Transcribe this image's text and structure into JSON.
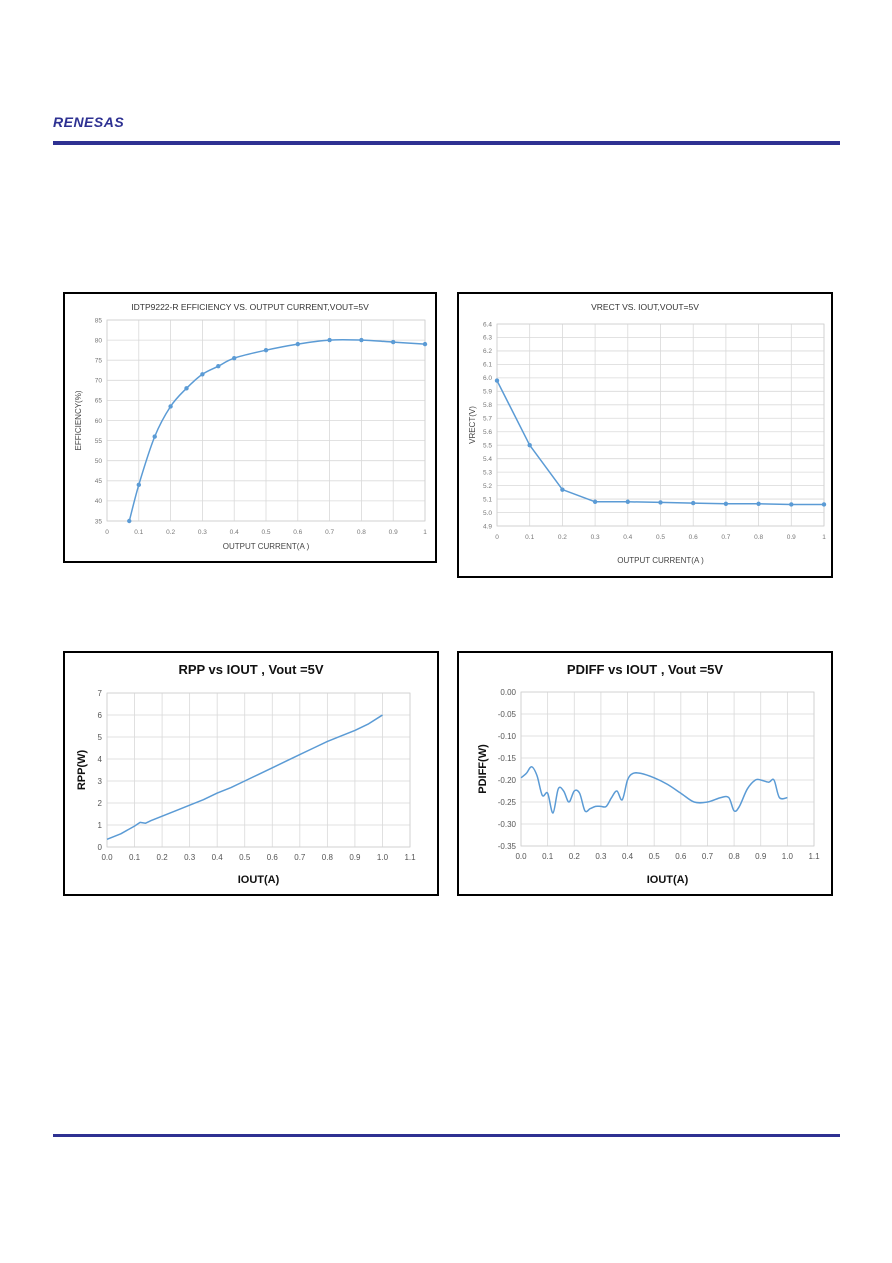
{
  "header": {
    "brand": "RENESAS",
    "colors": {
      "rule": "#2e3192",
      "line": "#5b9bd5"
    }
  },
  "chart_data": [
    {
      "type": "line",
      "title": "IDTP9222-R EFFICIENCY VS. OUTPUT CURRENT,VOUT=5V",
      "xlabel": "OUTPUT CURRENT(A )",
      "ylabel": "EFFICIENCY(%)",
      "xlim": [
        0,
        1
      ],
      "ylim": [
        35,
        85
      ],
      "xticks": [
        "0",
        "0.1",
        "0.2",
        "0.3",
        "0.4",
        "0.5",
        "0.6",
        "0.7",
        "0.8",
        "0.9",
        "1"
      ],
      "yticks": [
        "35",
        "40",
        "45",
        "50",
        "55",
        "60",
        "65",
        "70",
        "75",
        "80",
        "85"
      ],
      "grid": true,
      "markers": true,
      "smooth": true,
      "series": [
        {
          "x": [
            0.07,
            0.1,
            0.15,
            0.2,
            0.25,
            0.3,
            0.35,
            0.4,
            0.5,
            0.6,
            0.7,
            0.8,
            0.9,
            1.0
          ],
          "values": [
            35,
            44,
            56,
            63.5,
            68,
            71.5,
            73.5,
            75.5,
            77.5,
            79,
            80,
            80,
            79.5,
            79
          ]
        }
      ]
    },
    {
      "type": "line",
      "title": "VRECT VS. IOUT,VOUT=5V",
      "xlabel": "OUTPUT CURRENT(A )",
      "ylabel": "VRECT(V)",
      "xlim": [
        0,
        1
      ],
      "ylim": [
        4.9,
        6.4
      ],
      "xticks": [
        "0",
        "0.1",
        "0.2",
        "0.3",
        "0.4",
        "0.5",
        "0.6",
        "0.7",
        "0.8",
        "0.9",
        "1"
      ],
      "yticks": [
        "4.9",
        "5.0",
        "5.1",
        "5.2",
        "5.3",
        "5.4",
        "5.5",
        "5.6",
        "5.7",
        "5.8",
        "5.9",
        "6.0",
        "6.1",
        "6.2",
        "6.3",
        "6.4"
      ],
      "grid": true,
      "markers": true,
      "smooth": false,
      "series": [
        {
          "x": [
            0,
            0.1,
            0.2,
            0.3,
            0.4,
            0.5,
            0.6,
            0.7,
            0.8,
            0.9,
            1.0
          ],
          "values": [
            5.98,
            5.5,
            5.17,
            5.08,
            5.08,
            5.075,
            5.07,
            5.065,
            5.065,
            5.06,
            5.06
          ]
        }
      ]
    },
    {
      "type": "line",
      "title": "RPP vs IOUT , Vout =5V",
      "xlabel": "IOUT(A)",
      "ylabel": "RPP(W)",
      "xlim": [
        0,
        1.1
      ],
      "ylim": [
        0,
        7
      ],
      "xticks": [
        "0.0",
        "0.1",
        "0.2",
        "0.3",
        "0.4",
        "0.5",
        "0.6",
        "0.7",
        "0.8",
        "0.9",
        "1.0",
        "1.1"
      ],
      "yticks": [
        "0",
        "1",
        "2",
        "3",
        "4",
        "5",
        "6",
        "7"
      ],
      "grid": true,
      "markers": false,
      "smooth": false,
      "series": [
        {
          "x": [
            0,
            0.05,
            0.1,
            0.12,
            0.14,
            0.16,
            0.2,
            0.25,
            0.3,
            0.35,
            0.4,
            0.45,
            0.5,
            0.55,
            0.6,
            0.65,
            0.7,
            0.75,
            0.8,
            0.85,
            0.9,
            0.95,
            1.0
          ],
          "values": [
            0.35,
            0.6,
            0.95,
            1.12,
            1.08,
            1.2,
            1.4,
            1.65,
            1.9,
            2.15,
            2.45,
            2.7,
            3.0,
            3.3,
            3.6,
            3.9,
            4.2,
            4.5,
            4.8,
            5.05,
            5.3,
            5.6,
            6.0
          ]
        }
      ]
    },
    {
      "type": "line",
      "title": "PDIFF vs IOUT , Vout =5V",
      "xlabel": "IOUT(A)",
      "ylabel": "PDIFF(W)",
      "xlim": [
        0,
        1.1
      ],
      "ylim": [
        -0.35,
        0
      ],
      "xticks": [
        "0.0",
        "0.1",
        "0.2",
        "0.3",
        "0.4",
        "0.5",
        "0.6",
        "0.7",
        "0.8",
        "0.9",
        "1.0",
        "1.1"
      ],
      "yticks": [
        "-0.35",
        "-0.30",
        "-0.25",
        "-0.20",
        "-0.15",
        "-0.10",
        "-0.05",
        "0.00"
      ],
      "grid": true,
      "markers": false,
      "smooth": true,
      "series": [
        {
          "x": [
            0,
            0.02,
            0.04,
            0.06,
            0.08,
            0.1,
            0.12,
            0.14,
            0.16,
            0.18,
            0.2,
            0.22,
            0.24,
            0.26,
            0.28,
            0.3,
            0.32,
            0.34,
            0.36,
            0.38,
            0.4,
            0.42,
            0.45,
            0.5,
            0.55,
            0.6,
            0.65,
            0.7,
            0.75,
            0.78,
            0.8,
            0.82,
            0.85,
            0.88,
            0.9,
            0.93,
            0.95,
            0.97,
            1.0
          ],
          "values": [
            -0.195,
            -0.185,
            -0.17,
            -0.19,
            -0.235,
            -0.23,
            -0.275,
            -0.22,
            -0.225,
            -0.25,
            -0.225,
            -0.23,
            -0.27,
            -0.265,
            -0.26,
            -0.26,
            -0.26,
            -0.24,
            -0.225,
            -0.245,
            -0.2,
            -0.185,
            -0.185,
            -0.195,
            -0.21,
            -0.23,
            -0.25,
            -0.25,
            -0.24,
            -0.24,
            -0.27,
            -0.26,
            -0.22,
            -0.2,
            -0.2,
            -0.205,
            -0.2,
            -0.24,
            -0.24
          ]
        }
      ]
    }
  ]
}
